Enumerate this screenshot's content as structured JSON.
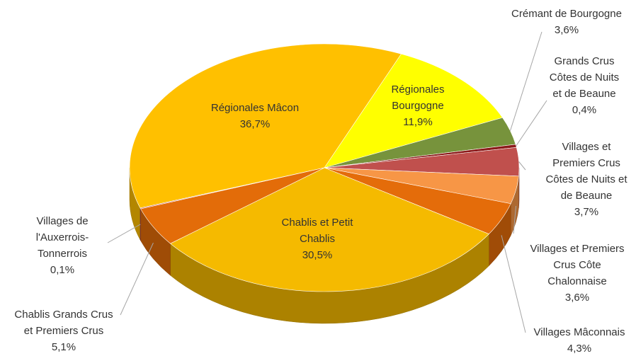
{
  "chart_data": {
    "type": "pie",
    "categories": [
      "Régionales Mâcon",
      "Régionales Bourgogne",
      "Crémant de Bourgogne",
      "Grands Crus Côtes de Nuits et de Beaune",
      "Villages et Premiers Crus Côtes de Nuits et de Beaune",
      "Villages et Premiers Crus Côte Chalonnaise",
      "Villages Mâconnais",
      "Chablis et Petit Chablis",
      "Chablis Grands Crus et Premiers Crus",
      "Villages de l'Auxerrois-Tonnerrois"
    ],
    "values": [
      36.7,
      11.9,
      3.6,
      0.4,
      3.7,
      3.6,
      4.3,
      30.5,
      5.1,
      0.1
    ],
    "value_labels": [
      "36,7%",
      "11,9%",
      "3,6%",
      "0,4%",
      "3,7%",
      "3,6%",
      "4,3%",
      "30,5%",
      "5,1%",
      "0,1%"
    ],
    "colors": [
      "#FFC000",
      "#FFFF00",
      "#77933C",
      "#8B1A1A",
      "#C0504D",
      "#F79646",
      "#E46C0A",
      "#F5BA00",
      "#E36C09",
      "#C0504D"
    ]
  }
}
